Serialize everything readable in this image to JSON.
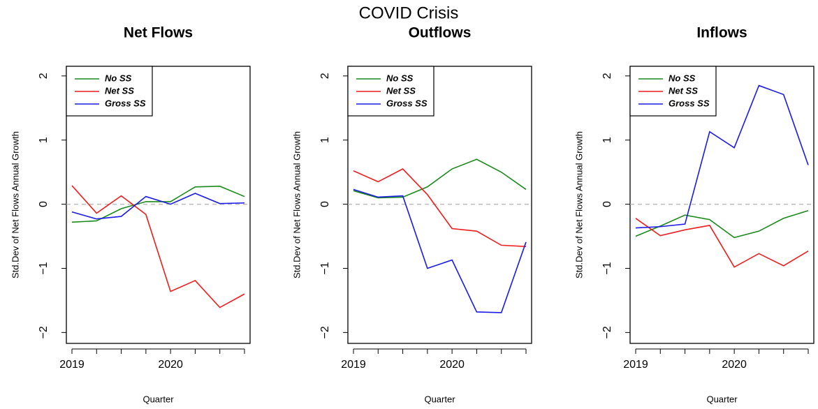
{
  "title": "COVID Crisis",
  "chart_data": [
    {
      "type": "line",
      "title": "Net Flows",
      "xlabel": "Quarter",
      "ylabel": "Std.Dev of Net Flows Annual Growth",
      "categories": [
        "2019",
        null,
        null,
        null,
        "2020",
        null,
        null,
        null
      ],
      "ylim": [
        -2.17,
        2.15
      ],
      "yticks": [
        {
          "value": -2,
          "label": "−2"
        },
        {
          "value": -1,
          "label": "−1"
        },
        0,
        1,
        2
      ],
      "reference_line": 0,
      "legend": "top-left",
      "series": [
        {
          "name": "No SS",
          "color": "#1a8a1a",
          "values": [
            -0.28,
            -0.26,
            -0.07,
            0.04,
            0.04,
            0.27,
            0.28,
            0.12
          ]
        },
        {
          "name": "Net SS",
          "color": "#ee1c1c",
          "values": [
            0.29,
            -0.14,
            0.13,
            -0.16,
            -1.36,
            -1.19,
            -1.61,
            -1.4
          ]
        },
        {
          "name": "Gross SS",
          "color": "#1a1ae6",
          "values": [
            -0.12,
            -0.23,
            -0.19,
            0.12,
            0.0,
            0.17,
            0.01,
            0.02
          ]
        }
      ]
    },
    {
      "type": "line",
      "title": "Outflows",
      "xlabel": "Quarter",
      "ylabel": "Std.Dev of Net Flows Annual Growth",
      "categories": [
        "2019",
        null,
        null,
        null,
        "2020",
        null,
        null,
        null
      ],
      "ylim": [
        -2.17,
        2.15
      ],
      "yticks": [
        {
          "value": -2,
          "label": "−2"
        },
        {
          "value": -1,
          "label": "−1"
        },
        0,
        1,
        2
      ],
      "reference_line": 0,
      "legend": "top-left",
      "series": [
        {
          "name": "No SS",
          "color": "#1a8a1a",
          "values": [
            0.21,
            0.1,
            0.11,
            0.27,
            0.55,
            0.7,
            0.5,
            0.23
          ]
        },
        {
          "name": "Net SS",
          "color": "#ee1c1c",
          "values": [
            0.52,
            0.35,
            0.55,
            0.15,
            -0.38,
            -0.42,
            -0.64,
            -0.66
          ]
        },
        {
          "name": "Gross SS",
          "color": "#1a1ae6",
          "values": [
            0.23,
            0.11,
            0.13,
            -1.0,
            -0.87,
            -1.68,
            -1.69,
            -0.59
          ]
        }
      ]
    },
    {
      "type": "line",
      "title": "Inflows",
      "xlabel": "Quarter",
      "ylabel": "Std.Dev of Net Flows Annual Growth",
      "categories": [
        "2019",
        null,
        null,
        null,
        "2020",
        null,
        null,
        null
      ],
      "ylim": [
        -2.17,
        2.15
      ],
      "yticks": [
        {
          "value": -2,
          "label": "−2"
        },
        {
          "value": -1,
          "label": "−1"
        },
        0,
        1,
        2
      ],
      "reference_line": 0,
      "legend": "top-left",
      "series": [
        {
          "name": "No SS",
          "color": "#1a8a1a",
          "values": [
            -0.5,
            -0.34,
            -0.17,
            -0.24,
            -0.52,
            -0.42,
            -0.22,
            -0.1
          ]
        },
        {
          "name": "Net SS",
          "color": "#ee1c1c",
          "values": [
            -0.22,
            -0.49,
            -0.4,
            -0.33,
            -0.98,
            -0.77,
            -0.96,
            -0.73
          ]
        },
        {
          "name": "Gross SS",
          "color": "#1a1ae6",
          "values": [
            -0.37,
            -0.35,
            -0.31,
            1.13,
            0.88,
            1.85,
            1.71,
            0.61
          ]
        }
      ]
    }
  ]
}
